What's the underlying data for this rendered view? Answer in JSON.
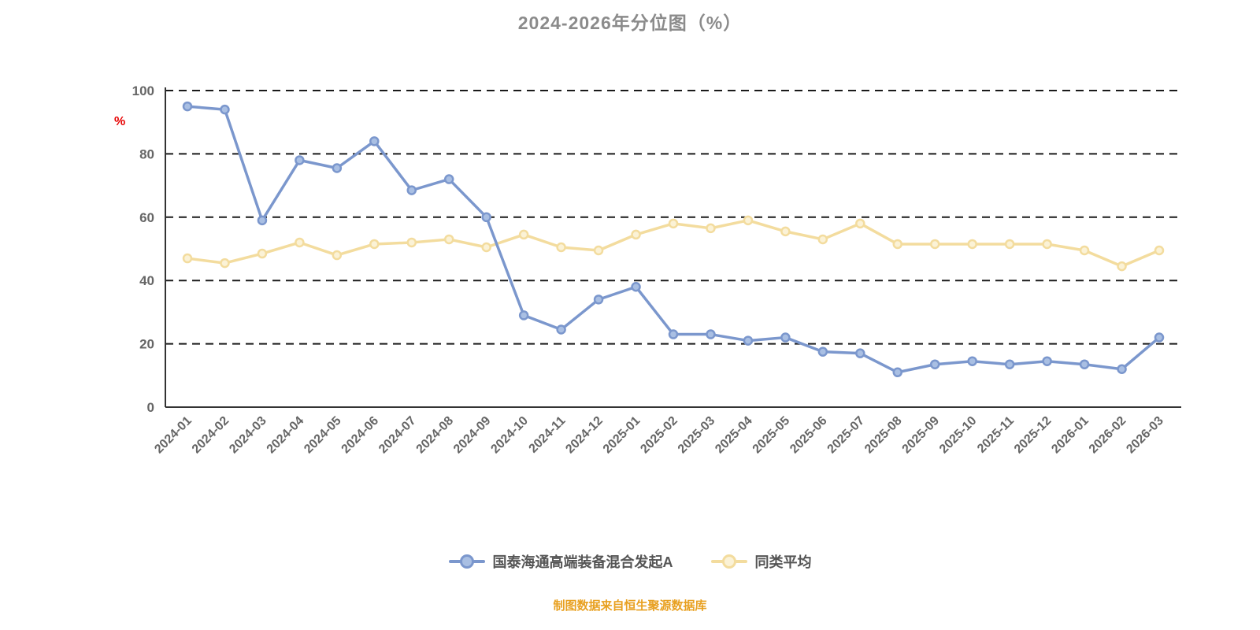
{
  "title": "2024-2026年分位图（%）",
  "unit_label": "%",
  "footnote": "制图数据来自恒生聚源数据库",
  "colors": {
    "title_gray": "#8b8b8b",
    "axis_line": "#333333",
    "grid_line": "#1a1a1a",
    "tick_label": "#666666",
    "unit_red": "#e60000",
    "footnote_orange": "#e8a020",
    "series_blue": "#7b97cd",
    "series_blue_marker": "#a9bfe3",
    "series_yellow": "#f3dc9e",
    "series_yellow_marker": "#fbf2d6"
  },
  "legend": {
    "items": [
      {
        "label": "国泰海通高端装备混合发起A"
      },
      {
        "label": "同类平均"
      }
    ]
  },
  "chart_data": {
    "type": "line",
    "title": "2024-2026年分位图（%）",
    "xlabel": "",
    "ylabel": "%",
    "ylim": [
      0,
      100
    ],
    "yticks": [
      0,
      20,
      40,
      60,
      80,
      100
    ],
    "grid": "horizontal-dashed",
    "legend_position": "bottom",
    "x": [
      "2024-01",
      "2024-02",
      "2024-03",
      "2024-04",
      "2024-05",
      "2024-06",
      "2024-07",
      "2024-08",
      "2024-09",
      "2024-10",
      "2024-11",
      "2024-12",
      "2025-01",
      "2025-02",
      "2025-03",
      "2025-04",
      "2025-05",
      "2025-06",
      "2025-07",
      "2025-08",
      "2025-09",
      "2025-10",
      "2025-11",
      "2025-12",
      "2026-01",
      "2026-02",
      "2026-03"
    ],
    "series": [
      {
        "name": "国泰海通高端装备混合发起A",
        "color": "#7b97cd",
        "marker_fill": "#a9bfe3",
        "values": [
          95,
          94,
          59,
          78,
          75.5,
          84,
          68.5,
          72,
          60,
          29,
          24.5,
          34,
          38,
          23,
          23,
          21,
          22,
          17.5,
          17,
          11,
          13.5,
          14.5,
          13.5,
          14.5,
          13.5,
          12,
          22
        ]
      },
      {
        "name": "同类平均",
        "color": "#f3dc9e",
        "marker_fill": "#fbf2d6",
        "values": [
          47,
          45.5,
          48.5,
          52,
          48,
          51.5,
          52,
          53,
          50.5,
          54.5,
          50.5,
          49.5,
          54.5,
          58,
          56.5,
          59,
          55.5,
          53,
          58,
          51.5,
          51.5,
          51.5,
          51.5,
          51.5,
          49.5,
          44.5,
          49.5
        ]
      }
    ]
  }
}
